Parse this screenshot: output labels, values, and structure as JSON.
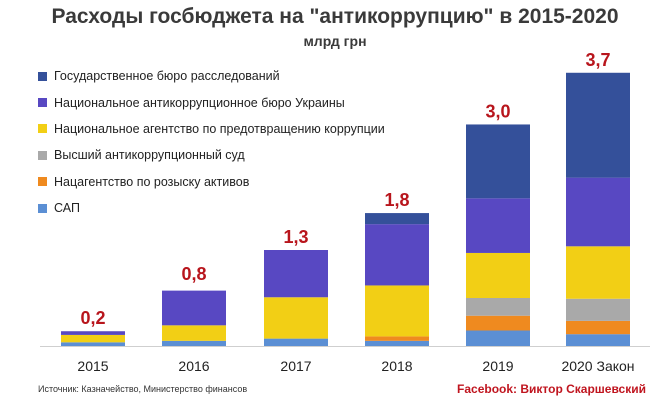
{
  "header": {
    "title": "Расходы госбюджета на \"антикоррупцию\" в 2015-2020",
    "subtitle": "млрд грн"
  },
  "footer": {
    "source": "Источник: Казначейство, Министерство финансов",
    "credit": "Facebook: Виктор Скаршевский"
  },
  "chart_data": {
    "type": "bar",
    "stacked": true,
    "title": "Расходы госбюджета на \"антикоррупцию\" в 2015-2020",
    "ylabel": "млрд грн",
    "categories": [
      "2015",
      "2016",
      "2017",
      "2018",
      "2019",
      "2020 Закон"
    ],
    "totals": [
      0.2,
      0.8,
      1.3,
      1.8,
      3.0,
      3.7
    ],
    "total_labels": [
      "0,2",
      "0,8",
      "1,3",
      "1,8",
      "3,0",
      "3,7"
    ],
    "total_label_color": "#b8151c",
    "ylim": [
      0,
      3.9
    ],
    "grid": false,
    "legend_position": "top-left",
    "series": [
      {
        "name": "Государственное бюро расследований",
        "color": "#34509a",
        "values": [
          0,
          0,
          0,
          0.15,
          1.0,
          1.42
        ]
      },
      {
        "name": "Национальное антикоррупционное бюро Украины",
        "color": "#5848c2",
        "values": [
          0.05,
          0.47,
          0.64,
          0.83,
          0.74,
          0.93
        ]
      },
      {
        "name": "Национальное агентство по предотвращению коррупции",
        "color": "#f2cf15",
        "values": [
          0.1,
          0.21,
          0.56,
          0.69,
          0.61,
          0.71
        ]
      },
      {
        "name": "Высший антикоррупционный суд",
        "color": "#a9a9a9",
        "values": [
          0,
          0,
          0,
          0,
          0.24,
          0.3
        ]
      },
      {
        "name": "Нацагентство по розыску активов",
        "color": "#ef8a1f",
        "values": [
          0,
          0,
          0,
          0.06,
          0.2,
          0.18
        ]
      },
      {
        "name": "САП",
        "color": "#5b8fd4",
        "values": [
          0.05,
          0.07,
          0.1,
          0.07,
          0.21,
          0.16
        ]
      }
    ]
  }
}
